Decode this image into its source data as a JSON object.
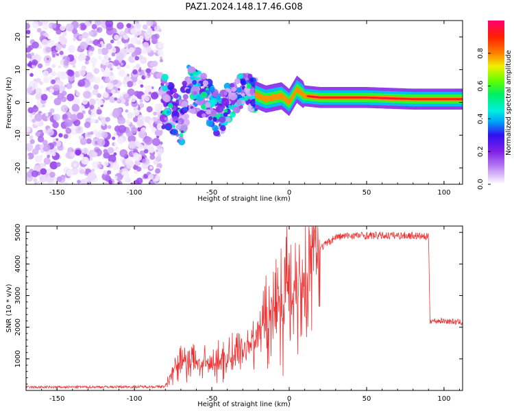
{
  "title": "PAZ1.2024.148.17.46.G08",
  "colors": {
    "snr_line": "#f03030",
    "colormap": [
      "#ffffff",
      "#d8b8f8",
      "#b070f0",
      "#8020e8",
      "#3010f0",
      "#00a0f8",
      "#00f0e0",
      "#00f060",
      "#60ff00",
      "#f0f000",
      "#ff8000",
      "#ff2000",
      "#ff0070"
    ]
  },
  "chart_data": [
    {
      "type": "heatmap",
      "xlabel": "Height of straight line (km)",
      "ylabel": "Frequency (Hz)",
      "xlim": [
        -170,
        112
      ],
      "ylim": [
        -25,
        25
      ],
      "xticks": [
        -150,
        -100,
        -50,
        0,
        50,
        100
      ],
      "yticks": [
        -20,
        -10,
        0,
        10,
        20
      ],
      "colorbar": {
        "label": "Normalized spectral amplitude",
        "range": [
          0,
          1
        ],
        "ticks": [
          0.0,
          0.2,
          0.4,
          0.6,
          0.8
        ]
      },
      "regions": [
        {
          "x_range": [
            -170,
            -82
          ],
          "description_level": 0.12,
          "freq_spread": 25
        },
        {
          "x_range": [
            -82,
            -20
          ],
          "description_level": 0.35,
          "freq_spread": 8
        },
        {
          "x_range": [
            -20,
            10
          ],
          "description_level": 0.55,
          "freq_spread": 3
        },
        {
          "x_range": [
            10,
            112
          ],
          "description_level": 0.9,
          "freq_spread": 1
        }
      ],
      "center_frequency_track": [
        {
          "x": -80,
          "y": 0
        },
        {
          "x": -75,
          "y": -3
        },
        {
          "x": -70,
          "y": -6
        },
        {
          "x": -65,
          "y": 4
        },
        {
          "x": -55,
          "y": 2
        },
        {
          "x": -45,
          "y": -5
        },
        {
          "x": -40,
          "y": 0
        },
        {
          "x": -30,
          "y": 4
        },
        {
          "x": -20,
          "y": 2
        },
        {
          "x": -15,
          "y": 1
        },
        {
          "x": -5,
          "y": 2
        },
        {
          "x": 0,
          "y": 0
        },
        {
          "x": 5,
          "y": 4
        },
        {
          "x": 10,
          "y": 2
        },
        {
          "x": 20,
          "y": 1.5
        },
        {
          "x": 50,
          "y": 1.5
        },
        {
          "x": 80,
          "y": 1
        },
        {
          "x": 112,
          "y": 1
        }
      ]
    },
    {
      "type": "line",
      "xlabel": "Height of straight line (km)",
      "ylabel": "SNR (10 * v/v)",
      "xlim": [
        -170,
        112
      ],
      "ylim": [
        0,
        5200
      ],
      "xticks": [
        -150,
        -100,
        -50,
        0,
        50,
        100
      ],
      "yticks": [
        1000,
        2000,
        3000,
        4000,
        5000
      ],
      "series": [
        {
          "x": [
            -170,
            -80,
            -75,
            -70,
            -60,
            -50,
            -40,
            -30,
            -20,
            -10,
            0,
            10,
            20,
            30,
            40,
            50,
            60,
            70,
            80,
            90,
            91,
            100,
            112
          ],
          "y": [
            100,
            120,
            700,
            900,
            900,
            800,
            1000,
            1300,
            1800,
            2700,
            3200,
            3600,
            4500,
            4850,
            4900,
            4900,
            4900,
            4900,
            4900,
            4850,
            2200,
            2200,
            2150
          ]
        }
      ]
    }
  ]
}
